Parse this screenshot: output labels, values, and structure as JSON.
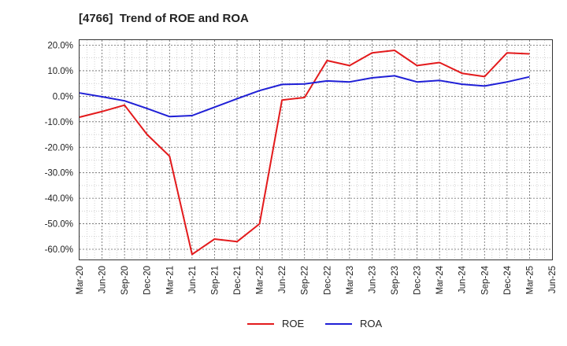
{
  "chart_data": {
    "type": "line",
    "title": "[4766]  Trend of ROE and ROA",
    "xlabel": "",
    "ylabel": "",
    "x": [
      "Mar-20",
      "Jun-20",
      "Sep-20",
      "Dec-20",
      "Mar-21",
      "Jun-21",
      "Sep-21",
      "Dec-21",
      "Mar-22",
      "Jun-22",
      "Sep-22",
      "Dec-22",
      "Mar-23",
      "Jun-23",
      "Sep-23",
      "Dec-23",
      "Mar-24",
      "Jun-24",
      "Sep-24",
      "Dec-24",
      "Mar-25",
      "Jun-25"
    ],
    "y_ticks": [
      "20.0%",
      "10.0%",
      "0.0%",
      "-10.0%",
      "-20.0%",
      "-30.0%",
      "-40.0%",
      "-50.0%",
      "-60.0%"
    ],
    "ylim": [
      -64,
      22
    ],
    "grid": true,
    "legend_position": "bottom",
    "series": [
      {
        "name": "ROE",
        "color": "#e31a1c",
        "values": [
          -8.2,
          -6.0,
          -3.5,
          -15.0,
          -23.5,
          -62.0,
          -56.0,
          -57.0,
          -50.0,
          -1.5,
          -0.5,
          14.0,
          12.0,
          17.0,
          18.0,
          12.0,
          13.2,
          9.0,
          7.7,
          17.0,
          16.6,
          null
        ]
      },
      {
        "name": "ROA",
        "color": "#1f1fd6",
        "values": [
          1.3,
          -0.2,
          -1.8,
          -4.8,
          -8.0,
          -7.6,
          -4.3,
          -1.0,
          2.2,
          4.6,
          4.8,
          6.0,
          5.6,
          7.2,
          8.0,
          5.6,
          6.2,
          4.7,
          4.0,
          5.6,
          7.6,
          null
        ]
      }
    ]
  }
}
